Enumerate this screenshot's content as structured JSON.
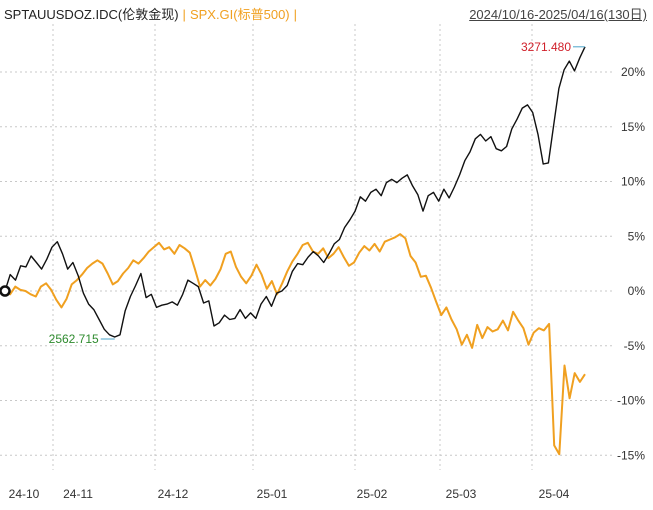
{
  "header": {
    "series1_label": "SPTAUUSDOZ.IDC(伦敦金现)",
    "separator": "|",
    "series2_label": "SPX.GI(标普500)",
    "trailing_sep": "|",
    "date_range": "2024/10/16-2025/04/16(130日)"
  },
  "chart_data": {
    "type": "line",
    "x_tick_labels": [
      "24-10",
      "24-11",
      "24-12",
      "25-01",
      "25-02",
      "25-03",
      "25-04"
    ],
    "y_tick_labels": [
      "20%",
      "15%",
      "10%",
      "5%",
      "0%",
      "-5%",
      "-10%",
      "-15%"
    ],
    "ylim": [
      -15,
      22.5
    ],
    "annotations": {
      "max_label": "3271.480",
      "min_label": "2562.715"
    },
    "colors": {
      "gold": "#111111",
      "spx": "#f0a020",
      "max": "#d0202a",
      "min": "#2e8b2e"
    },
    "series": [
      {
        "name": "SPTAUUSDOZ.IDC(伦敦金现)",
        "values": [
          0.0,
          1.5,
          1.0,
          2.3,
          2.2,
          3.2,
          2.6,
          2.0,
          2.9,
          4.0,
          4.5,
          3.4,
          2.0,
          2.6,
          1.4,
          -0.2,
          -1.2,
          -1.7,
          -2.6,
          -3.5,
          -4.0,
          -4.2,
          -4.0,
          -1.8,
          -0.5,
          0.5,
          1.6,
          -0.6,
          -0.3,
          -1.5,
          -1.3,
          -1.2,
          -1.0,
          -1.3,
          -0.3,
          1.0,
          0.7,
          0.4,
          -1.1,
          -0.9,
          -3.2,
          -2.9,
          -2.2,
          -2.6,
          -2.5,
          -1.7,
          -2.5,
          -2.0,
          -2.5,
          -1.2,
          -0.5,
          -1.4,
          -0.2,
          0.0,
          0.5,
          1.8,
          2.5,
          2.4,
          3.1,
          3.6,
          3.2,
          2.6,
          3.4,
          4.3,
          4.7,
          5.8,
          6.5,
          7.3,
          8.6,
          8.2,
          9.0,
          9.3,
          8.7,
          9.9,
          10.2,
          9.9,
          10.3,
          10.6,
          9.6,
          8.8,
          7.3,
          8.7,
          9.0,
          8.2,
          9.3,
          8.5,
          9.5,
          10.6,
          11.9,
          12.7,
          13.9,
          14.3,
          13.7,
          14.1,
          13.0,
          12.8,
          13.2,
          14.8,
          15.7,
          16.7,
          17.0,
          16.3,
          14.3,
          11.6,
          11.7,
          15.1,
          18.5,
          20.2,
          21.0,
          20.1,
          21.3,
          22.3
        ],
        "color": "#111111"
      },
      {
        "name": "SPX.GI(标普500)",
        "values": [
          0.0,
          -0.3,
          0.4,
          0.1,
          0.0,
          -0.3,
          -0.5,
          0.4,
          0.7,
          0.1,
          -0.8,
          -1.5,
          -0.7,
          0.6,
          1.0,
          1.5,
          2.1,
          2.5,
          2.8,
          2.5,
          1.6,
          0.6,
          0.9,
          1.6,
          2.1,
          2.8,
          2.5,
          3.0,
          3.6,
          4.0,
          4.4,
          3.8,
          4.0,
          3.4,
          4.2,
          3.9,
          3.5,
          2.0,
          0.4,
          1.0,
          0.5,
          1.1,
          2.0,
          3.4,
          3.6,
          2.2,
          1.3,
          0.7,
          1.4,
          2.4,
          1.5,
          0.2,
          0.9,
          -0.3,
          0.7,
          1.8,
          2.7,
          3.4,
          4.2,
          4.4,
          3.6,
          3.4,
          3.9,
          3.0,
          3.4,
          4.0,
          3.1,
          2.3,
          2.6,
          3.5,
          4.1,
          3.7,
          4.3,
          3.6,
          4.5,
          4.7,
          4.9,
          5.2,
          4.8,
          3.2,
          2.6,
          1.3,
          1.4,
          0.3,
          -1.0,
          -2.2,
          -1.5,
          -2.6,
          -3.5,
          -4.9,
          -4.0,
          -5.2,
          -3.1,
          -4.3,
          -3.3,
          -3.7,
          -3.5,
          -2.7,
          -3.6,
          -1.9,
          -2.7,
          -3.4,
          -4.9,
          -3.8,
          -3.4,
          -3.6,
          -3.0,
          -14.1,
          -14.9,
          -6.8,
          -9.8,
          -7.5,
          -8.3,
          -7.6
        ],
        "color": "#f0a020"
      }
    ]
  }
}
